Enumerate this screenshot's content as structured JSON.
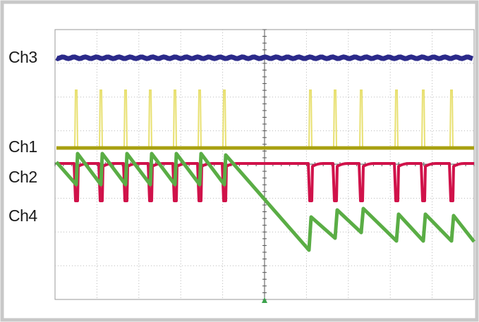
{
  "channels": [
    {
      "label": "Ch3"
    },
    {
      "label": "Ch1"
    },
    {
      "label": "Ch2"
    },
    {
      "label": "Ch4"
    }
  ]
}
